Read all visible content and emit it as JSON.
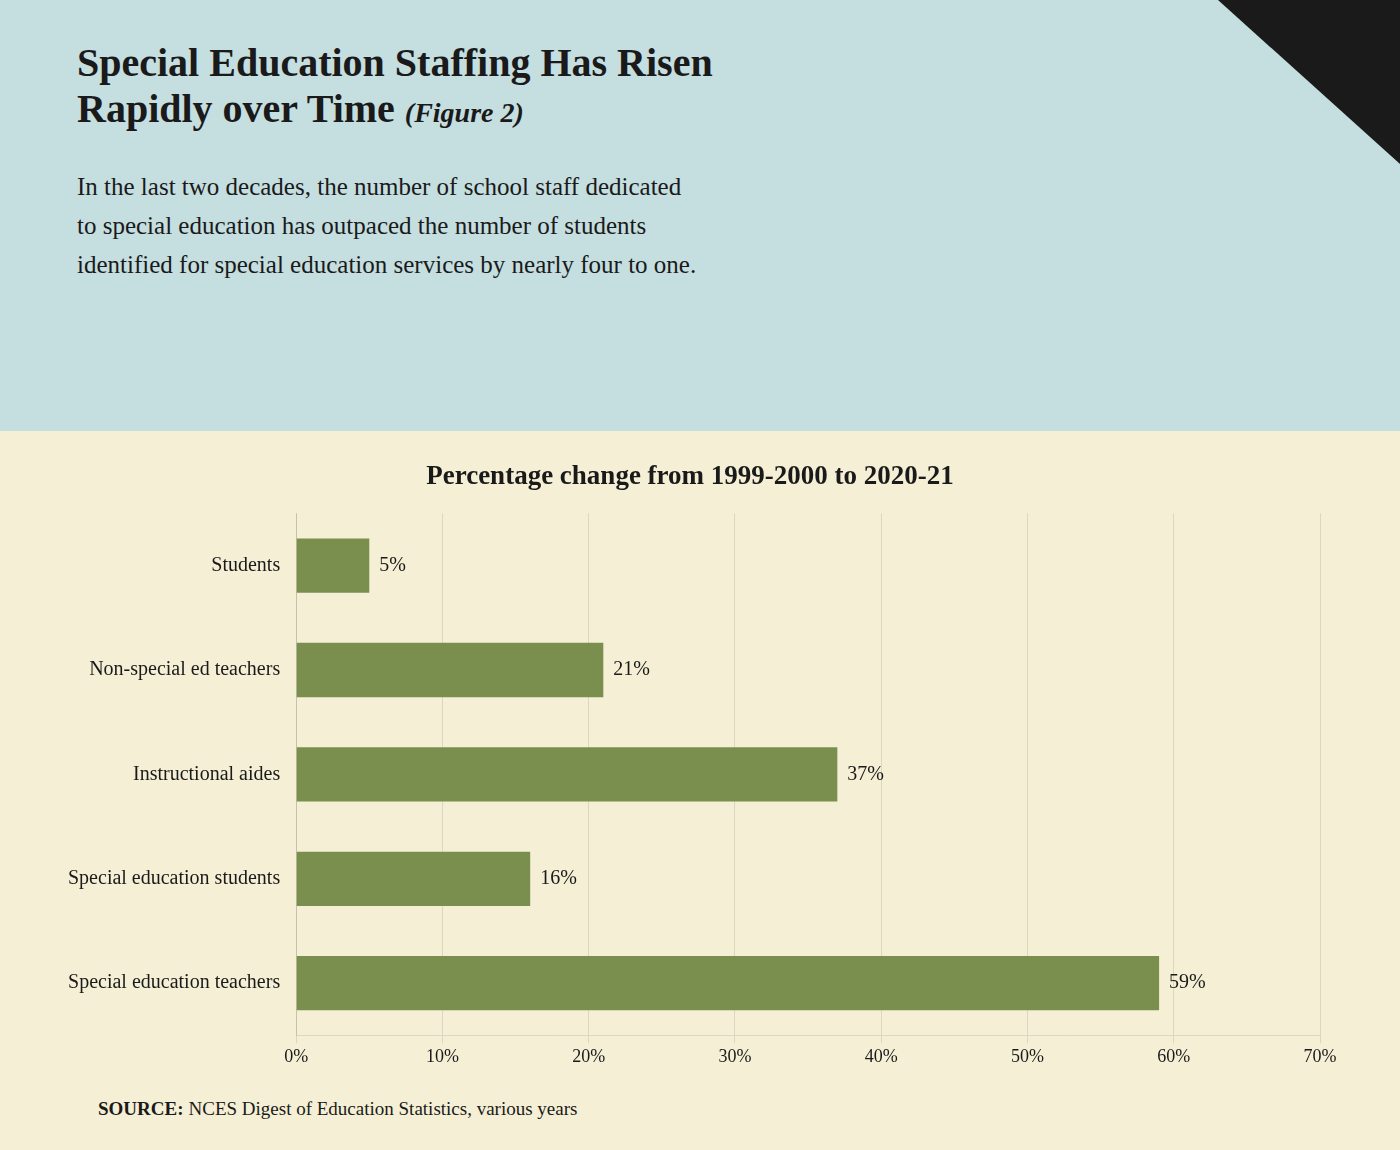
{
  "chart_data": {
    "type": "bar",
    "orientation": "horizontal",
    "title": "Special Education Staffing Has Risen\nRapidly over Time",
    "subtitle": "In the last two decades, the number of school staff dedicated\nto special education has outpaced the number of students\nidentified for special education services by nearly four to one.",
    "annotations": [
      "(Figure 2)",
      "Percentage change from 1999-2000 to 2020-21",
      "SOURCE:",
      "NCES Digest of Education Statistics, various years"
    ],
    "categories": [
      "Special education teachers",
      "Special education students",
      "Instructional aides",
      "Non-special ed teachers",
      "Students"
    ],
    "values": [
      59,
      16,
      37,
      21,
      5
    ],
    "value_labels": [
      "59%",
      "16%",
      "37%",
      "21%",
      "5%"
    ],
    "data_labels": true,
    "color": "#7a8f4e",
    "xlim": [
      0,
      70
    ],
    "xticks": [
      {
        "value": 0,
        "label": "0%"
      },
      {
        "value": 10,
        "label": "10%"
      },
      {
        "value": 20,
        "label": "20%"
      },
      {
        "value": 30,
        "label": "30%"
      },
      {
        "value": 40,
        "label": "40%"
      },
      {
        "value": 50,
        "label": "50%"
      },
      {
        "value": 60,
        "label": "60%"
      },
      {
        "value": 70,
        "label": "70%"
      }
    ],
    "grid": true
  }
}
